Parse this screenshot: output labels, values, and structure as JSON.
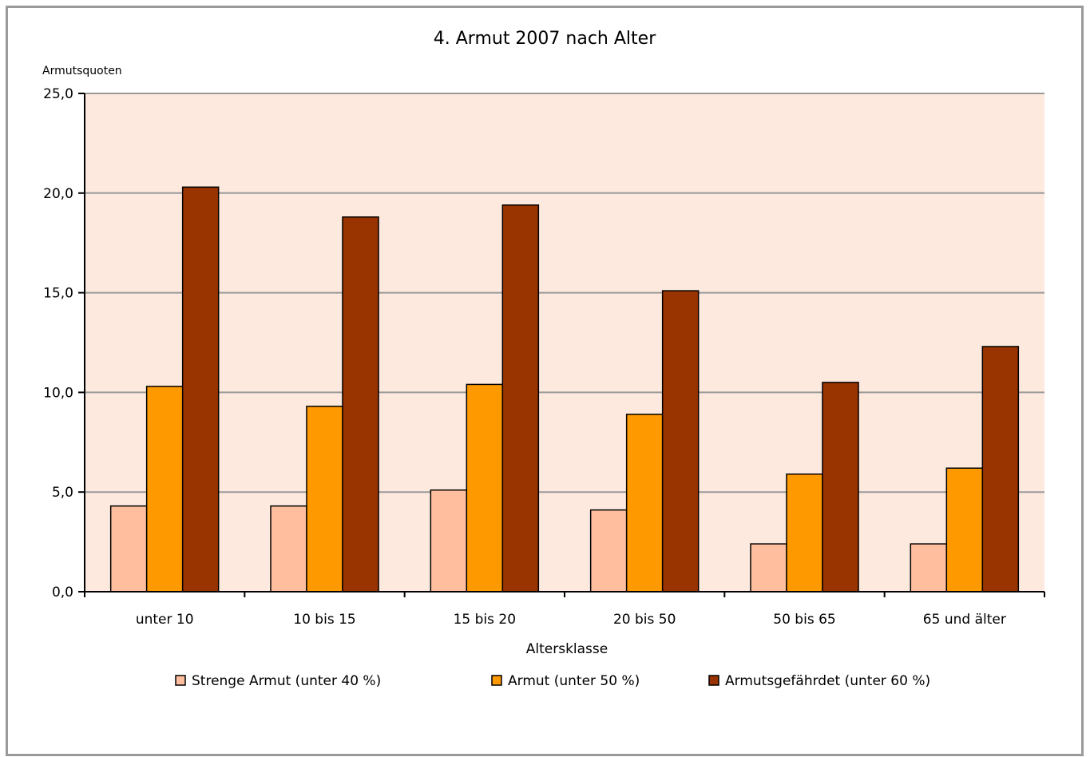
{
  "chart_data": {
    "type": "bar",
    "title": "4. Armut 2007 nach Alter",
    "ylabel": "Armutsquoten",
    "xlabel": "Altersklasse",
    "ylim": [
      0,
      25
    ],
    "yticks": [
      "0,0",
      "5,0",
      "10,0",
      "15,0",
      "20,0",
      "25,0"
    ],
    "ytick_values": [
      0,
      5,
      10,
      15,
      20,
      25
    ],
    "categories": [
      "unter 10",
      "10 bis 15",
      "15 bis 20",
      "20 bis 50",
      "50 bis 65",
      "65 und älter"
    ],
    "series": [
      {
        "name": "Strenge Armut (unter 40 %)",
        "values": [
          4.3,
          4.3,
          5.1,
          4.1,
          2.4,
          2.4
        ],
        "color": "#ffbf9f"
      },
      {
        "name": "Armut (unter 50 %)",
        "values": [
          10.3,
          9.3,
          10.4,
          8.9,
          5.9,
          6.2
        ],
        "color": "#ff9900"
      },
      {
        "name": "Armutsgefährdet (unter 60 %)",
        "values": [
          20.3,
          18.8,
          19.4,
          15.1,
          10.5,
          12.3
        ],
        "color": "#993300"
      }
    ],
    "grid": true,
    "legend": "bottom",
    "plot_background": "#fde9dd",
    "gridline_color": "#9a9a9a"
  }
}
